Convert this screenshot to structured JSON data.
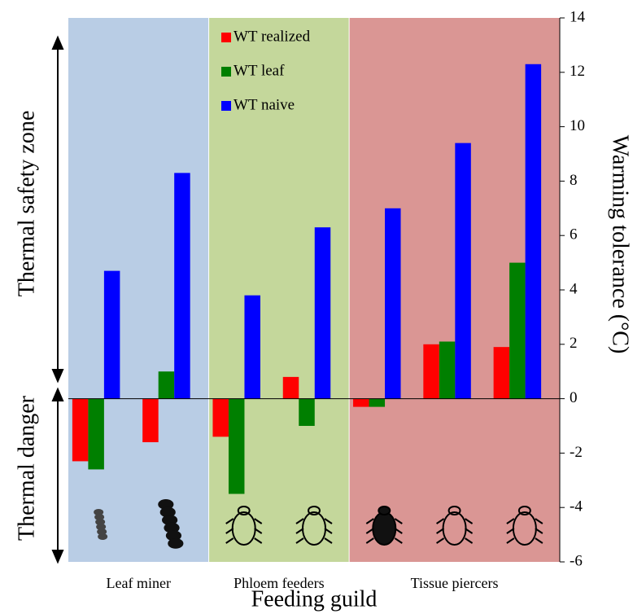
{
  "chart_data": {
    "type": "bar",
    "y_label": "Warming tolerance (°C)",
    "x_label": "Feeding guild",
    "annotations": [
      "Thermal safety zone",
      "Thermal danger"
    ],
    "categories": [
      null,
      null,
      null,
      null,
      null,
      null,
      null
    ],
    "groups": [
      {
        "label": "Leaf miner",
        "color": "#b9cde5",
        "members": [
          0,
          1
        ]
      },
      {
        "label": "Phloem feeders",
        "color": "#c4d79b",
        "members": [
          2,
          3
        ]
      },
      {
        "label": "Tissue piercers",
        "color": "#da9694",
        "members": [
          4,
          5,
          6
        ]
      }
    ],
    "series": [
      {
        "name": "WT realized",
        "color": "#ff0000",
        "values": [
          -2.3,
          -1.6,
          -1.4,
          0.8,
          -0.3,
          2.0,
          1.9
        ]
      },
      {
        "name": "WT leaf",
        "color": "#007f00",
        "values": [
          -2.6,
          1.0,
          -3.5,
          -1.0,
          -0.3,
          2.1,
          5.0
        ]
      },
      {
        "name": "WT naive",
        "color": "#0000ff",
        "values": [
          4.7,
          8.3,
          3.8,
          6.3,
          7.0,
          9.4,
          12.3
        ]
      }
    ],
    "ylim": [
      -6,
      14
    ],
    "yticks": [
      -6,
      -4,
      -2,
      0,
      2,
      4,
      6,
      8,
      10,
      12,
      14
    ],
    "y_axis_side": "right",
    "legend": "top"
  }
}
